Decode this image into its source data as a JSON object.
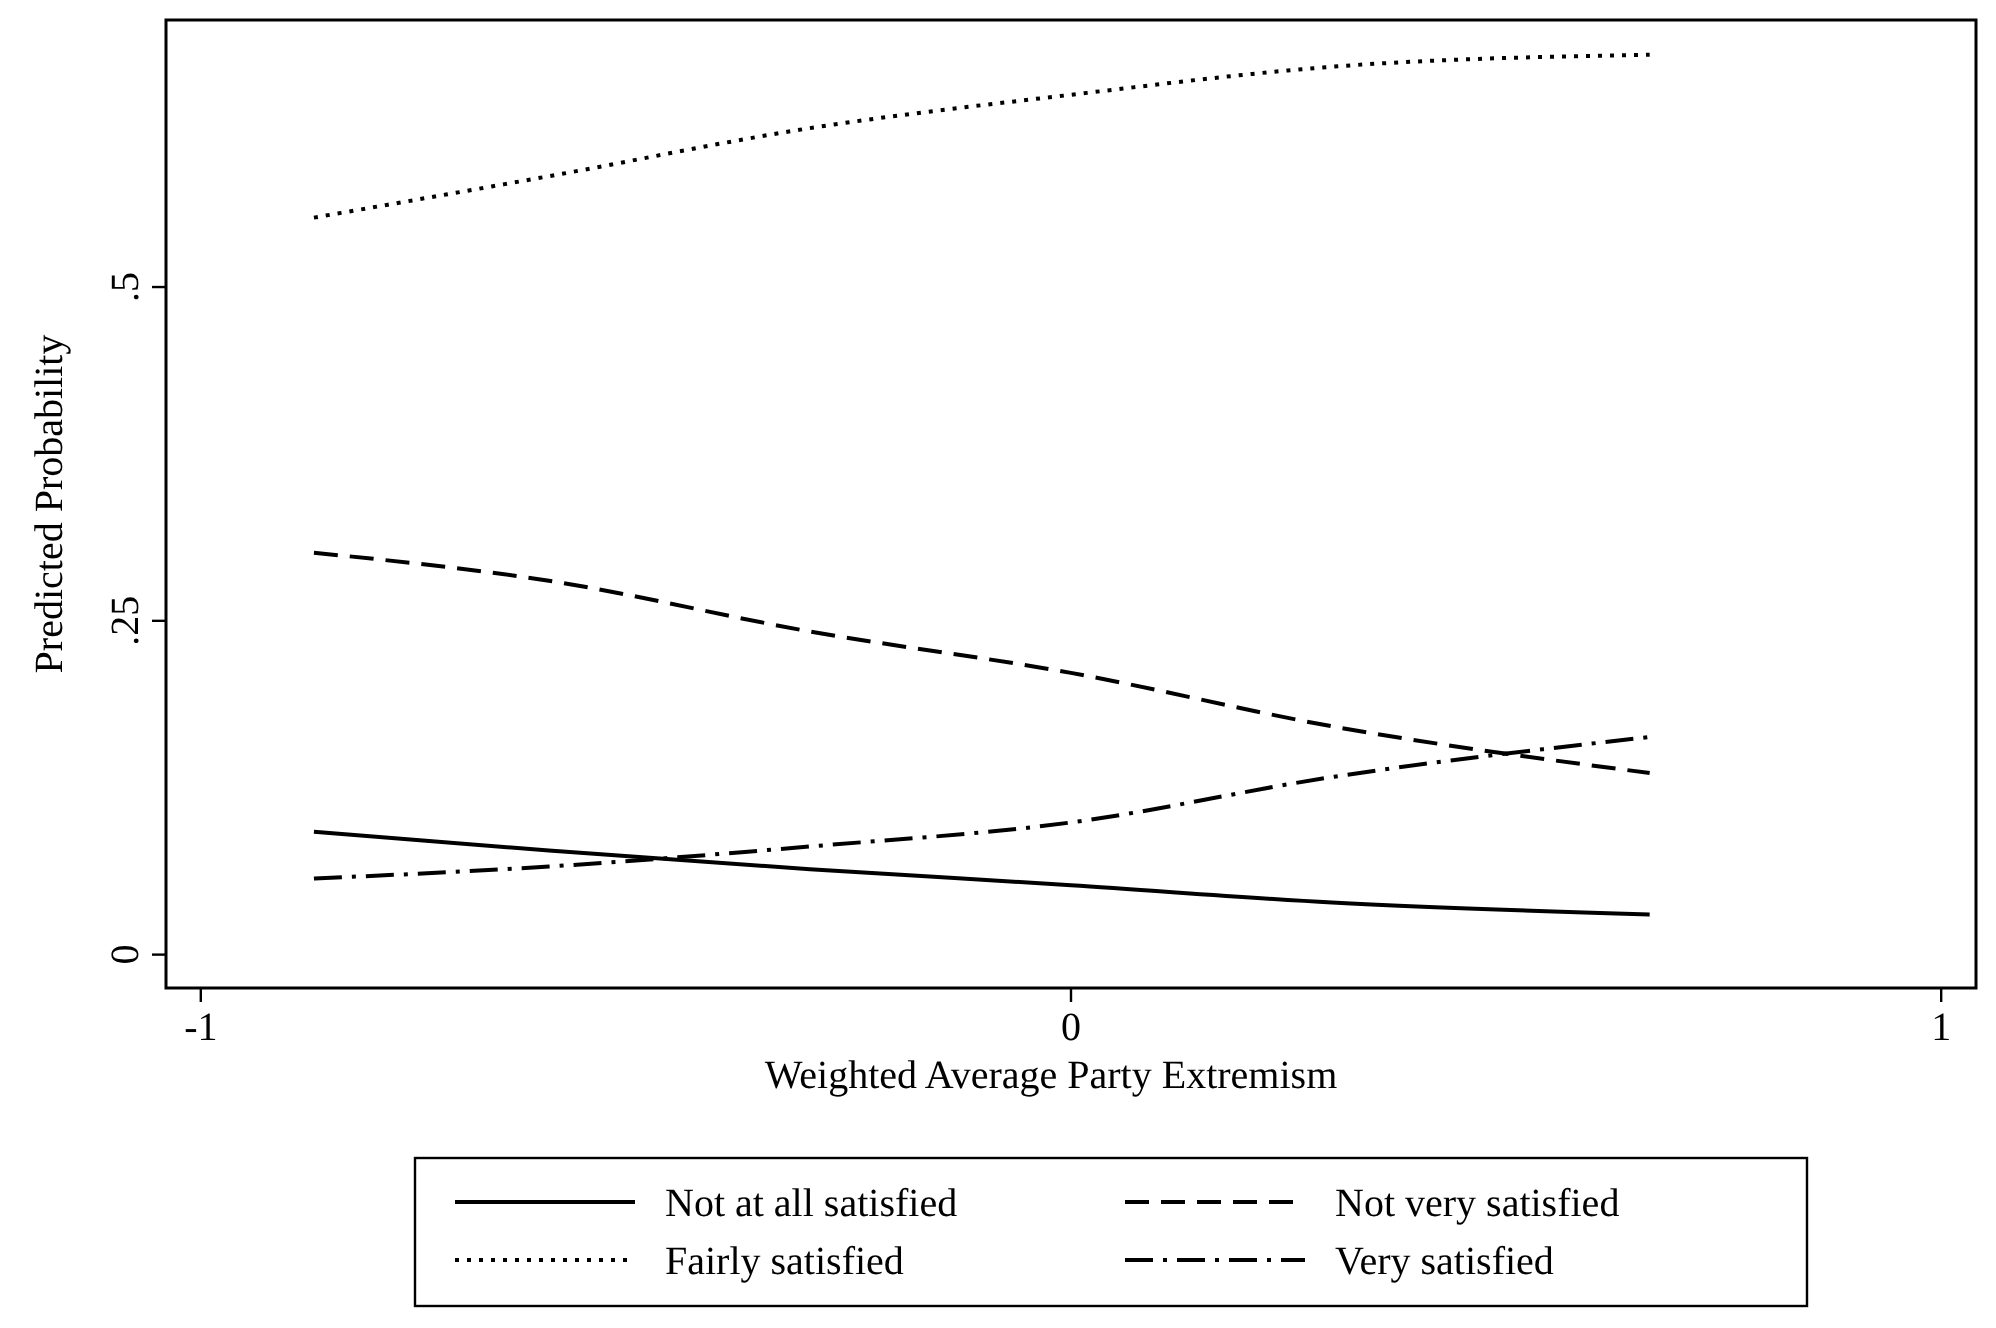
{
  "chart_data": {
    "type": "line",
    "xlabel": "Weighted Average Party Extremism",
    "ylabel": "Predicted Probability",
    "xlim": [
      -1.04,
      1.04
    ],
    "ylim": [
      -0.025,
      0.7
    ],
    "xticks": [
      -1,
      0,
      1
    ],
    "yticks": [
      {
        "value": 0,
        "label": "0"
      },
      {
        "value": 0.25,
        "label": ".25"
      },
      {
        "value": 0.5,
        "label": ".5"
      }
    ],
    "x": [
      -0.87,
      -0.6,
      -0.3,
      0,
      0.3,
      0.665
    ],
    "grid": false,
    "legend": "bottom",
    "marker": "none",
    "series": [
      {
        "name": "Not at all satisfied",
        "color": "#000000",
        "line_style": "solid",
        "values": [
          0.092,
          0.078,
          0.064,
          0.052,
          0.039,
          0.03
        ]
      },
      {
        "name": "Not very satisfied",
        "color": "#000000",
        "line_style": "dashed",
        "values": [
          0.301,
          0.28,
          0.242,
          0.211,
          0.171,
          0.136
        ]
      },
      {
        "name": "Fairly satisfied",
        "color": "#000000",
        "line_style": "dotted",
        "values": [
          0.552,
          0.583,
          0.619,
          0.644,
          0.665,
          0.674
        ]
      },
      {
        "name": "Very satisfied",
        "color": "#000000",
        "line_style": "dashdot",
        "values": [
          0.057,
          0.066,
          0.081,
          0.099,
          0.133,
          0.163
        ]
      }
    ]
  }
}
